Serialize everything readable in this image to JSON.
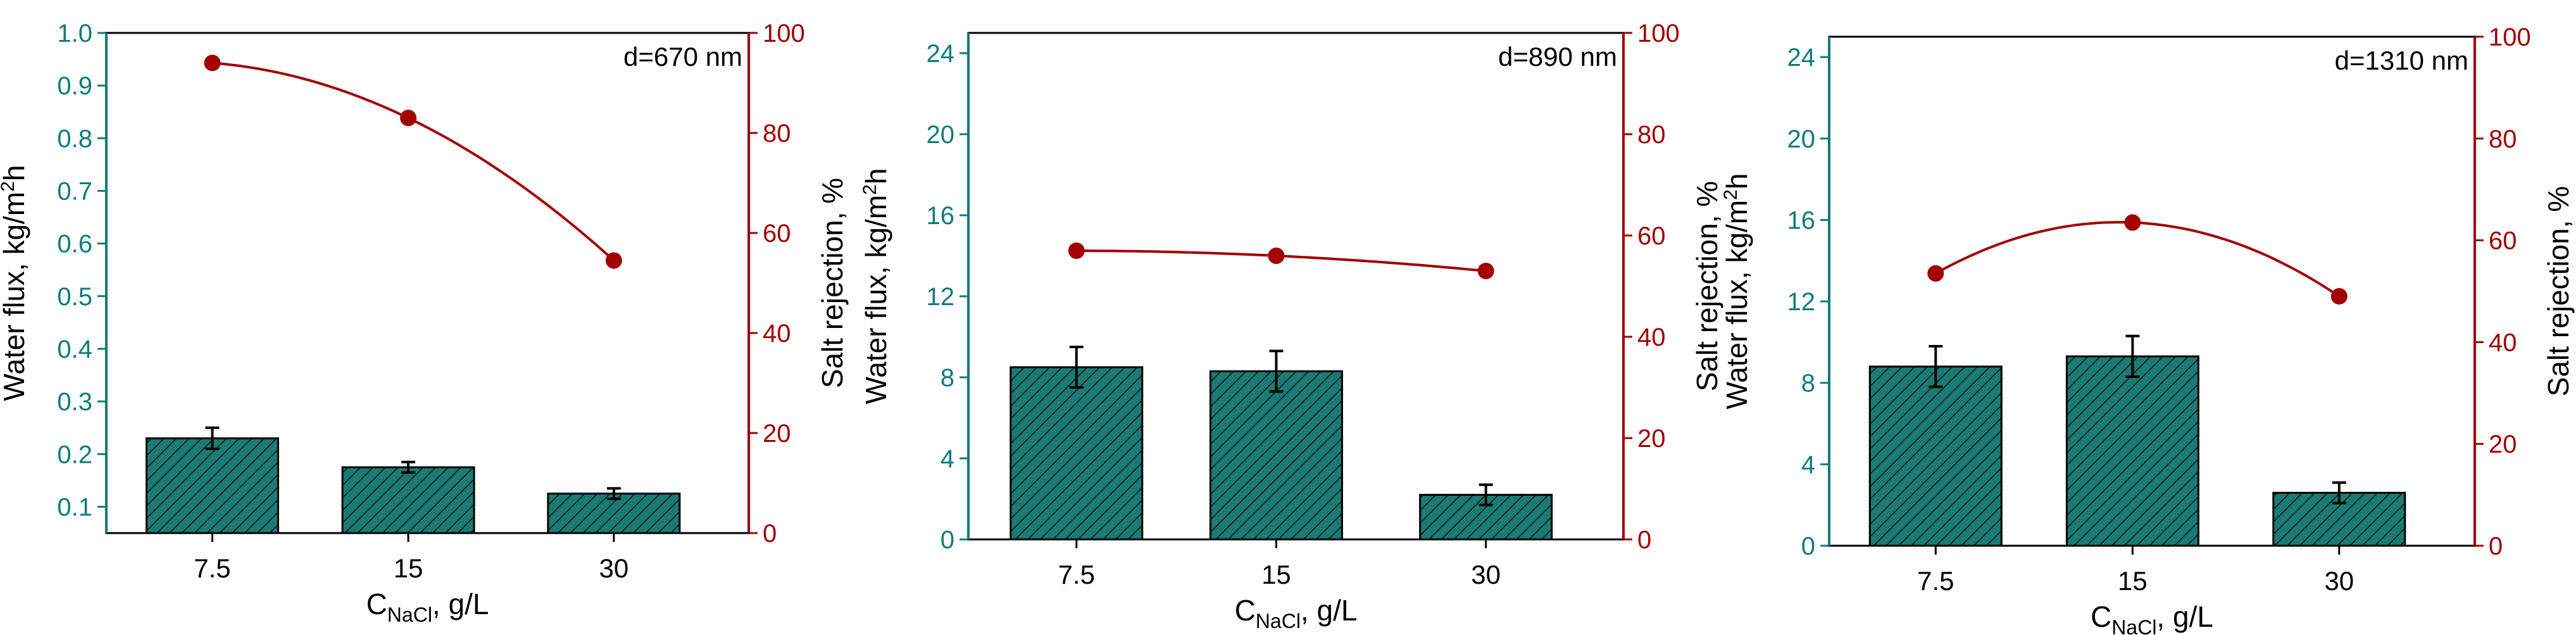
{
  "colors": {
    "bar_fill": "#1a7a74",
    "left_axis": "#0e7c7b",
    "right_axis": "#a30000",
    "line": "#a30000",
    "point": "#a30000"
  },
  "chart_data": [
    {
      "type": "bar",
      "annotation": "d=670 nm",
      "categories": [
        "7.5",
        "15",
        "30"
      ],
      "xlabel_main": "C",
      "xlabel_sub": "NaCl",
      "xlabel_tail": ", g/L",
      "ylabel": "Water flux, kg/m²h",
      "ylabel_main": "Water flux, kg/m",
      "ylabel_sup": "2",
      "ylabel_tail": "h",
      "y2label": "Salt rejection, %",
      "ylim": [
        0.05,
        1.0
      ],
      "yticks": [
        0.1,
        0.2,
        0.3,
        0.4,
        0.5,
        0.6,
        0.7,
        0.8,
        0.9,
        1.0
      ],
      "yticklabels": [
        "0.1",
        "0.2",
        "0.3",
        "0.4",
        "0.5",
        "0.6",
        "0.7",
        "0.8",
        "0.9",
        "1.0"
      ],
      "y2lim": [
        0,
        100
      ],
      "y2ticks": [
        0,
        20,
        40,
        60,
        80,
        100
      ],
      "y2ticklabels": [
        "0",
        "20",
        "40",
        "60",
        "80",
        "100"
      ],
      "series": [
        {
          "name": "",
          "kind": "bar",
          "axis": "left",
          "values": [
            0.23,
            0.175,
            0.125
          ],
          "errors": [
            0.02,
            0.01,
            0.01
          ]
        },
        {
          "name": "",
          "kind": "line",
          "axis": "right",
          "values": [
            94,
            83,
            54.5
          ]
        }
      ]
    },
    {
      "type": "bar",
      "annotation": "d=890 nm",
      "categories": [
        "7.5",
        "15",
        "30"
      ],
      "xlabel_main": "C",
      "xlabel_sub": "NaCl",
      "xlabel_tail": ", g/L",
      "ylabel": "Water flux, kg/m²h",
      "ylabel_main": "Water flux, kg/m",
      "ylabel_sup": "2",
      "ylabel_tail": "h",
      "y2label": "Salt rejection, %",
      "ylim": [
        0,
        25
      ],
      "yticks": [
        0,
        4,
        8,
        12,
        16,
        20,
        24
      ],
      "yticklabels": [
        "0",
        "4",
        "8",
        "12",
        "16",
        "20",
        "24"
      ],
      "y2lim": [
        0,
        100
      ],
      "y2ticks": [
        0,
        20,
        40,
        60,
        80,
        100
      ],
      "y2ticklabels": [
        "0",
        "20",
        "40",
        "60",
        "80",
        "100"
      ],
      "series": [
        {
          "name": "",
          "kind": "bar",
          "axis": "left",
          "values": [
            8.5,
            8.3,
            2.2
          ],
          "errors": [
            1.0,
            1.0,
            0.5
          ]
        },
        {
          "name": "",
          "kind": "line",
          "axis": "right",
          "values": [
            57,
            56,
            53
          ]
        }
      ]
    },
    {
      "type": "bar",
      "annotation": "d=1310 nm",
      "categories": [
        "7.5",
        "15",
        "30"
      ],
      "xlabel_main": "C",
      "xlabel_sub": "NaCl",
      "xlabel_tail": ", g/L",
      "ylabel": "Water flux, kg/m²h",
      "ylabel_main": "Water flux, kg/m",
      "ylabel_sup": "2",
      "ylabel_tail": "h",
      "y2label": "Salt rejection, %",
      "ylim": [
        0,
        25
      ],
      "yticks": [
        0,
        4,
        8,
        12,
        16,
        20,
        24
      ],
      "yticklabels": [
        "0",
        "4",
        "8",
        "12",
        "16",
        "20",
        "24"
      ],
      "y2lim": [
        0,
        100
      ],
      "y2ticks": [
        0,
        20,
        40,
        60,
        80,
        100
      ],
      "y2ticklabels": [
        "0",
        "20",
        "40",
        "60",
        "80",
        "100"
      ],
      "series": [
        {
          "name": "",
          "kind": "bar",
          "axis": "left",
          "values": [
            8.8,
            9.3,
            2.6
          ],
          "errors": [
            1.0,
            1.0,
            0.5
          ]
        },
        {
          "name": "",
          "kind": "line",
          "axis": "right",
          "values": [
            53.5,
            63.5,
            49
          ]
        }
      ]
    }
  ]
}
